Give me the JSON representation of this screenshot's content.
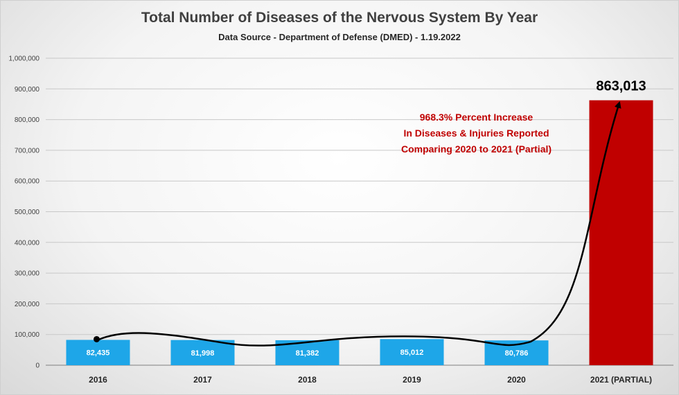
{
  "chart_data": {
    "type": "bar",
    "title": "Total Number of Diseases of the Nervous System By Year",
    "subtitle": "Data Source - Department of Defense (DMED) - 1.19.2022",
    "categories": [
      "2016",
      "2017",
      "2018",
      "2019",
      "2020",
      "2021 (PARTIAL)"
    ],
    "values": [
      82435,
      81998,
      81382,
      85012,
      80786,
      863013
    ],
    "data_labels": [
      "82,435",
      "81,998",
      "81,382",
      "85,012",
      "80,786",
      "863,013"
    ],
    "yticks": [
      "0",
      "100,000",
      "200,000",
      "300,000",
      "400,000",
      "500,000",
      "600,000",
      "700,000",
      "800,000",
      "900,000",
      "1,000,000"
    ],
    "ylim": [
      0,
      1000000
    ],
    "grid": true,
    "colors": {
      "regular": "#1ea6e8",
      "highlight": "#c00000",
      "annotation": "#c00000"
    },
    "annotation": [
      "968.3% Percent Increase",
      "In Diseases & Injuries Reported",
      "Comparing 2020 to 2021 (Partial)"
    ]
  }
}
